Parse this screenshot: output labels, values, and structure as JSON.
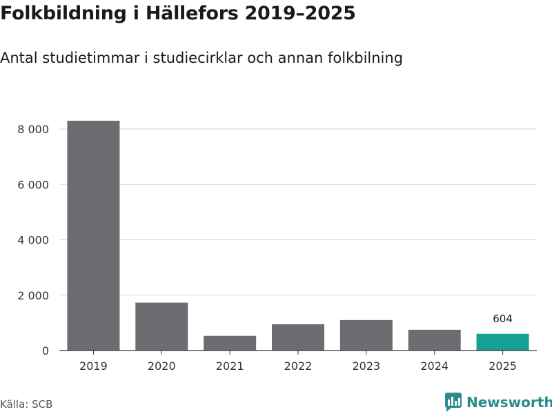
{
  "chart_data": {
    "type": "bar",
    "title": "Folkbildning i Hällefors 2019–2025",
    "subtitle": "Antal studietimmar i studiecirklar och annan folkbilning",
    "categories": [
      "2019",
      "2020",
      "2021",
      "2022",
      "2023",
      "2024",
      "2025"
    ],
    "values": [
      8300,
      1730,
      530,
      950,
      1100,
      750,
      604
    ],
    "highlight_index": 6,
    "data_labels": [
      null,
      null,
      null,
      null,
      null,
      null,
      "604"
    ],
    "yticks": [
      0,
      2000,
      4000,
      6000,
      8000
    ],
    "ytick_labels": [
      "0",
      "2 000",
      "4 000",
      "6 000",
      "8 000"
    ],
    "ylim": [
      0,
      8000
    ],
    "xlabel": "",
    "ylabel": "",
    "grid": true,
    "colors": {
      "bar": "#6d6c71",
      "highlight": "#14a093",
      "grid": "#d9d9d9",
      "axis": "#333333"
    }
  },
  "source": "Källa: SCB",
  "brand": {
    "name": "Newsworthy",
    "color": "#2a8c8c",
    "icon": "newsworthy-logo-icon"
  }
}
